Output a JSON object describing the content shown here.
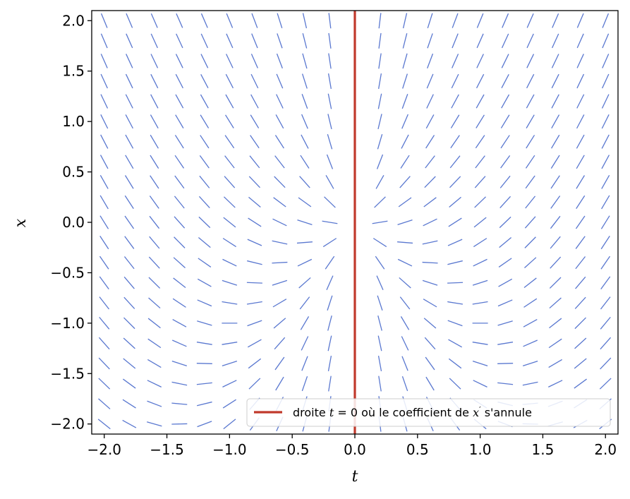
{
  "chart_data": {
    "type": "direction_field",
    "xlabel": "t",
    "ylabel": "x",
    "xlim": [
      -2.1,
      2.1
    ],
    "ylim": [
      -2.1,
      2.1
    ],
    "xticks": [
      "−2.0",
      "−1.5",
      "−1.0",
      "−0.5",
      "0.0",
      "0.5",
      "1.0",
      "1.5",
      "2.0"
    ],
    "xtick_values": [
      -2.0,
      -1.5,
      -1.0,
      -0.5,
      0.0,
      0.5,
      1.0,
      1.5,
      2.0
    ],
    "yticks": [
      "2.0",
      "1.5",
      "1.0",
      "0.5",
      "0.0",
      "−0.5",
      "−1.0",
      "−1.5",
      "−2.0"
    ],
    "ytick_values": [
      2.0,
      1.5,
      1.0,
      0.5,
      0.0,
      -0.5,
      -1.0,
      -1.5,
      -2.0
    ],
    "field": {
      "equation": "t x' = x + t^2",
      "t_range": [
        -2.0,
        2.0
      ],
      "x_range": [
        -2.0,
        2.0
      ],
      "grid_count": 21,
      "color": "#5a78d0"
    },
    "vertical_line": {
      "t": 0.0,
      "color": "#c0392b"
    },
    "legend": {
      "placement": "lower-right",
      "prefix": "droite ",
      "var": "t",
      "middle": " = 0 où le coefficient de ",
      "var2": "x",
      "prime": "′",
      "suffix": " s'annule"
    },
    "grid": false
  }
}
